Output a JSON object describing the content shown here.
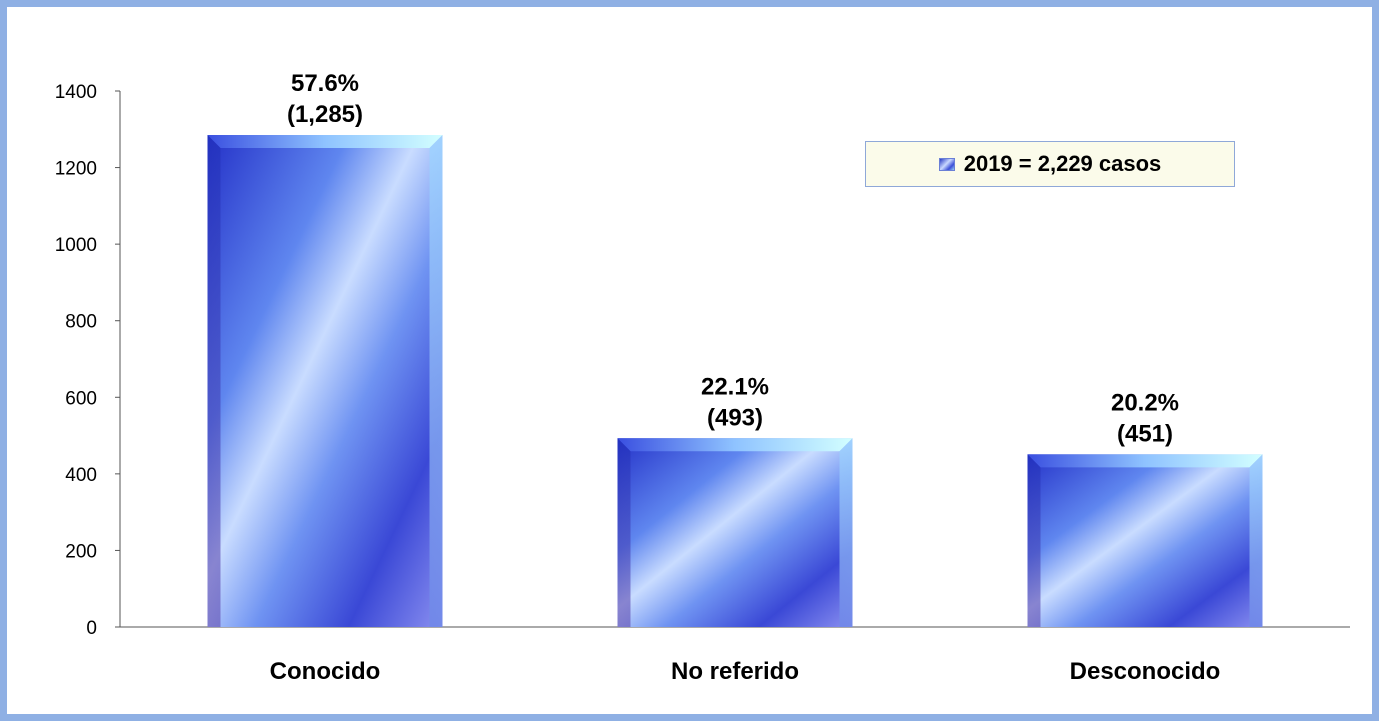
{
  "chart_data": {
    "type": "bar",
    "categories": [
      "Conocido",
      "No referido",
      "Desconocido"
    ],
    "values": [
      1285,
      493,
      451
    ],
    "data_labels": [
      {
        "percent": "57.6%",
        "count": "(1,285)"
      },
      {
        "percent": "22.1%",
        "count": "(493)"
      },
      {
        "percent": "20.2%",
        "count": "(451)"
      }
    ],
    "series": [
      {
        "name": "2019 = 2,229 casos",
        "values": [
          1285,
          493,
          451
        ]
      }
    ],
    "ylim": [
      0,
      1400
    ],
    "yticks": [
      "0",
      "200",
      "400",
      "600",
      "800",
      "1000",
      "1200",
      "1400"
    ],
    "grid": false,
    "legend_position": "top-right",
    "colors": {
      "frame": "#8fb0e4",
      "bar_dark": "#2a37c4",
      "bar_light": "#c7dcff",
      "bar_top": "#c8fbff",
      "legend_bg": "#fbfbea"
    }
  }
}
